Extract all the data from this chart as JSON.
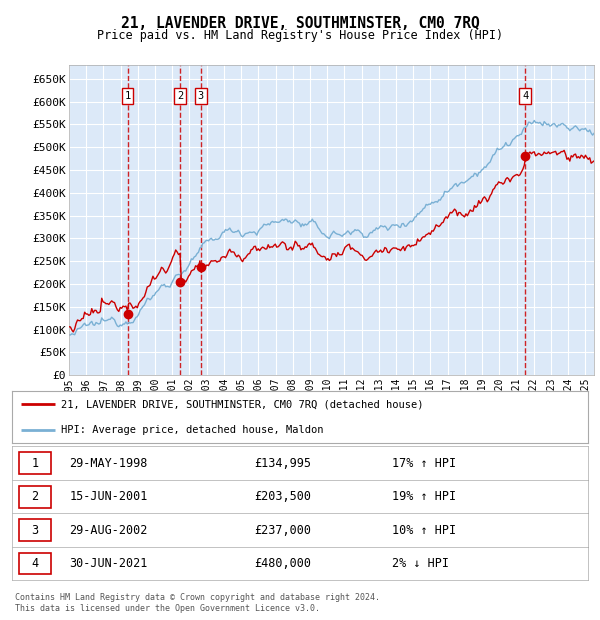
{
  "title": "21, LAVENDER DRIVE, SOUTHMINSTER, CM0 7RQ",
  "subtitle": "Price paid vs. HM Land Registry's House Price Index (HPI)",
  "yticks": [
    0,
    50000,
    100000,
    150000,
    200000,
    250000,
    300000,
    350000,
    400000,
    450000,
    500000,
    550000,
    600000,
    650000
  ],
  "ytick_labels": [
    "£0",
    "£50K",
    "£100K",
    "£150K",
    "£200K",
    "£250K",
    "£300K",
    "£350K",
    "£400K",
    "£450K",
    "£500K",
    "£550K",
    "£600K",
    "£650K"
  ],
  "xlim_start": 1995.0,
  "xlim_end": 2025.5,
  "ylim_min": 0,
  "ylim_max": 680000,
  "background_color": "#dce9f8",
  "grid_color": "#ffffff",
  "sale_color": "#cc0000",
  "hpi_color": "#7ab0d4",
  "transactions": [
    {
      "label": "1",
      "date": 1998.41,
      "price": 134995
    },
    {
      "label": "2",
      "date": 2001.45,
      "price": 203500
    },
    {
      "label": "3",
      "date": 2002.66,
      "price": 237000
    },
    {
      "label": "4",
      "date": 2021.5,
      "price": 480000
    }
  ],
  "table_rows": [
    {
      "num": "1",
      "date": "29-MAY-1998",
      "price": "£134,995",
      "change": "17% ↑ HPI"
    },
    {
      "num": "2",
      "date": "15-JUN-2001",
      "price": "£203,500",
      "change": "19% ↑ HPI"
    },
    {
      "num": "3",
      "date": "29-AUG-2002",
      "price": "£237,000",
      "change": "10% ↑ HPI"
    },
    {
      "num": "4",
      "date": "30-JUN-2021",
      "price": "£480,000",
      "change": "2% ↓ HPI"
    }
  ],
  "footer": "Contains HM Land Registry data © Crown copyright and database right 2024.\nThis data is licensed under the Open Government Licence v3.0.",
  "legend_sale_label": "21, LAVENDER DRIVE, SOUTHMINSTER, CM0 7RQ (detached house)",
  "legend_hpi_label": "HPI: Average price, detached house, Maldon"
}
